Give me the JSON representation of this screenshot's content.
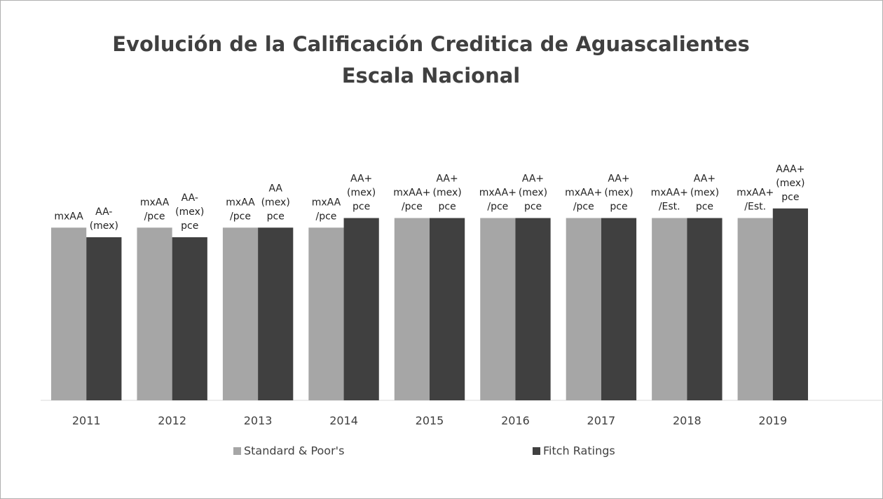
{
  "chart_data": {
    "type": "bar",
    "title": "Evolución de la Calificación Creditica de Aguascalientes",
    "subtitle": "Escala Nacional",
    "categories": [
      "2011",
      "2012",
      "2013",
      "2014",
      "2015",
      "2016",
      "2017",
      "2018",
      "2019"
    ],
    "series": [
      {
        "name": "Standard & Poor's",
        "color": "#a6a6a6",
        "values": [
          18,
          18,
          18,
          18,
          19,
          19,
          19,
          19,
          19
        ],
        "value_labels": [
          "mxAA",
          "mxAA\n/pce",
          "mxAA\n/pce",
          "mxAA\n/pce",
          "mxAA+\n/pce",
          "mxAA+\n/pce",
          "mxAA+\n/pce",
          "mxAA+\n/Est.",
          "mxAA+\n/Est."
        ]
      },
      {
        "name": "Fitch Ratings",
        "color": "#404040",
        "values": [
          17,
          17,
          18,
          19,
          19,
          19,
          19,
          19,
          20
        ],
        "value_labels": [
          "AA-\n(mex)",
          "AA-\n(mex)\npce",
          "AA\n(mex)\npce",
          "AA+\n(mex)\npce",
          "AA+\n(mex)\npce",
          "AA+\n(mex)\npce",
          "AA+\n(mex)\npce",
          "AA+\n(mex)\npce",
          "AAA+\n(mex)\npce"
        ]
      }
    ],
    "ylim": [
      0,
      24
    ],
    "legend": "bottom"
  }
}
